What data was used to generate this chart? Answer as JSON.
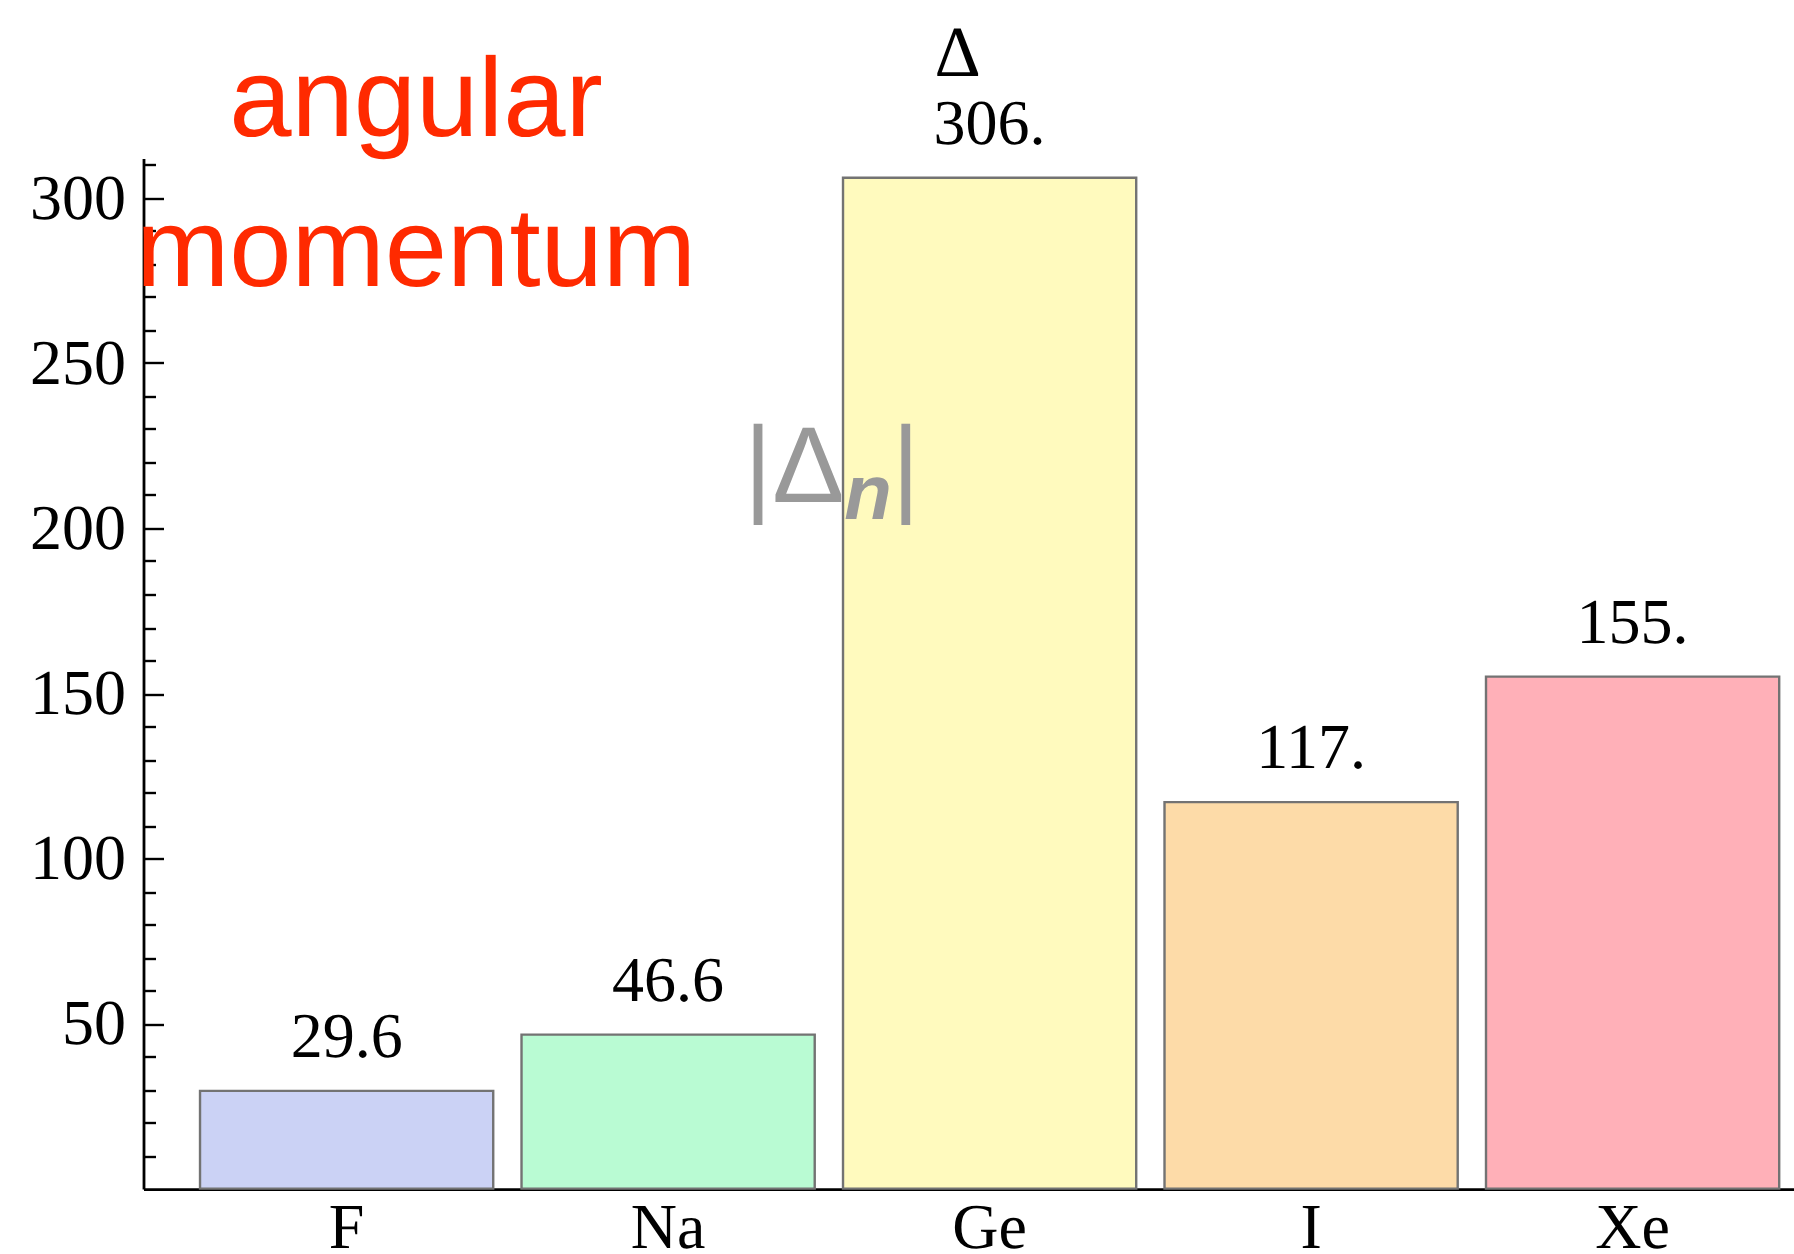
{
  "chart_data": {
    "type": "bar",
    "categories": [
      "F",
      "Na",
      "Ge",
      "I",
      "Xe"
    ],
    "values": [
      29.6,
      46.6,
      306,
      117,
      155
    ],
    "value_labels": [
      "29.6",
      "46.6",
      "306.",
      "117.",
      "155."
    ],
    "colors": [
      "#cbd2f5",
      "#b9fbd3",
      "#fffabe",
      "#fddba8",
      "#ffb0b8"
    ],
    "ylim": [
      0,
      312
    ],
    "yticks": [
      {
        "value": 10,
        "label": null
      },
      {
        "value": 20,
        "label": null
      },
      {
        "value": 30,
        "label": null
      },
      {
        "value": 40,
        "label": null
      },
      50,
      {
        "value": 60,
        "label": null
      },
      {
        "value": 70,
        "label": null
      },
      {
        "value": 80,
        "label": null
      },
      {
        "value": 90,
        "label": null
      },
      100,
      {
        "value": 110,
        "label": null
      },
      {
        "value": 120,
        "label": null
      },
      {
        "value": 130,
        "label": null
      },
      {
        "value": 140,
        "label": null
      },
      150,
      {
        "value": 160,
        "label": null
      },
      {
        "value": 170,
        "label": null
      },
      {
        "value": 180,
        "label": null
      },
      {
        "value": 190,
        "label": null
      },
      200,
      {
        "value": 210,
        "label": null
      },
      {
        "value": 220,
        "label": null
      },
      {
        "value": 230,
        "label": null
      },
      {
        "value": 240,
        "label": null
      },
      250,
      {
        "value": 260,
        "label": null
      },
      {
        "value": 270,
        "label": null
      },
      {
        "value": 280,
        "label": null
      },
      {
        "value": 290,
        "label": null
      },
      300,
      {
        "value": 310,
        "label": null
      }
    ],
    "annotations": [
      "angular momentum",
      "|Δ$_{n}$|",
      {
        "text": "Δ",
        "x": "Ge",
        "y": 306
      }
    ]
  }
}
